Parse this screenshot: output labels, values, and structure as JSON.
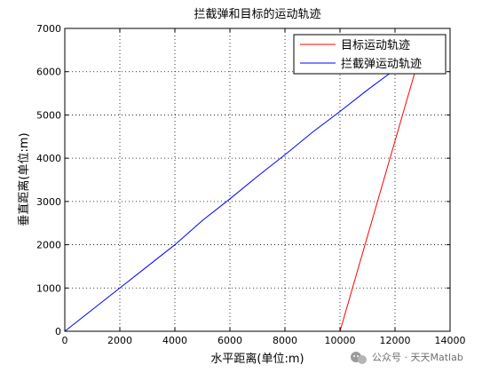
{
  "chart_data": {
    "type": "line",
    "title": "拦截弹和目标的运动轨迹",
    "xlabel": "水平距离(单位:m)",
    "ylabel": "垂直距离(单位:m)",
    "xlim": [
      0,
      14000
    ],
    "ylim": [
      0,
      7000
    ],
    "xticks": [
      0,
      2000,
      4000,
      6000,
      8000,
      10000,
      12000,
      14000
    ],
    "yticks": [
      0,
      1000,
      2000,
      3000,
      4000,
      5000,
      6000,
      7000
    ],
    "grid": true,
    "legend_position": "top-right",
    "series": [
      {
        "name": "目标运动轨迹",
        "color": "#ff0000",
        "x": [
          10000,
          12750
        ],
        "y": [
          0,
          6050
        ]
      },
      {
        "name": "拦截弹运动轨迹",
        "color": "#0000ff",
        "x": [
          0,
          1000,
          2000,
          3000,
          4000,
          5000,
          6000,
          7000,
          8000,
          9000,
          10000,
          11000,
          12000
        ],
        "y": [
          0,
          500,
          1000,
          1500,
          2000,
          2560,
          3060,
          3580,
          4080,
          4600,
          5080,
          5580,
          6050
        ]
      }
    ]
  },
  "watermark": {
    "icon": "wechat-icon",
    "text": "公众号 · 天天Matlab"
  }
}
